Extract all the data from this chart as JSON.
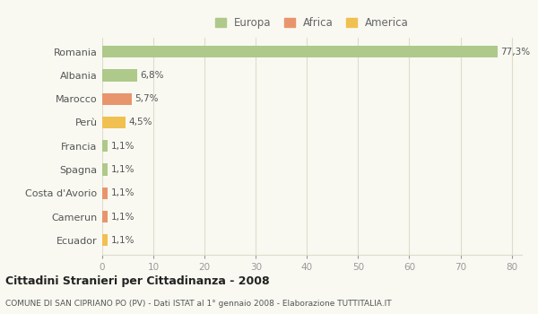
{
  "categories": [
    "Romania",
    "Albania",
    "Marocco",
    "Perù",
    "Francia",
    "Spagna",
    "Costa d'Avorio",
    "Camerun",
    "Ecuador"
  ],
  "values": [
    77.3,
    6.8,
    5.7,
    4.5,
    1.1,
    1.1,
    1.1,
    1.1,
    1.1
  ],
  "colors": [
    "#aec98a",
    "#aec98a",
    "#e8956d",
    "#f0c050",
    "#aec98a",
    "#aec98a",
    "#e8956d",
    "#e8956d",
    "#f0c050"
  ],
  "labels": [
    "77,3%",
    "6,8%",
    "5,7%",
    "4,5%",
    "1,1%",
    "1,1%",
    "1,1%",
    "1,1%",
    "1,1%"
  ],
  "legend": [
    {
      "label": "Europa",
      "color": "#aec98a"
    },
    {
      "label": "Africa",
      "color": "#e8956d"
    },
    {
      "label": "America",
      "color": "#f0c050"
    }
  ],
  "xlim": [
    0,
    82
  ],
  "xticks": [
    0,
    10,
    20,
    30,
    40,
    50,
    60,
    70,
    80
  ],
  "title": "Cittadini Stranieri per Cittadinanza - 2008",
  "subtitle": "COMUNE DI SAN CIPRIANO PO (PV) - Dati ISTAT al 1° gennaio 2008 - Elaborazione TUTTITALIA.IT",
  "bg_color": "#f9f9f2",
  "grid_color": "#ddddcc",
  "bar_height": 0.5
}
